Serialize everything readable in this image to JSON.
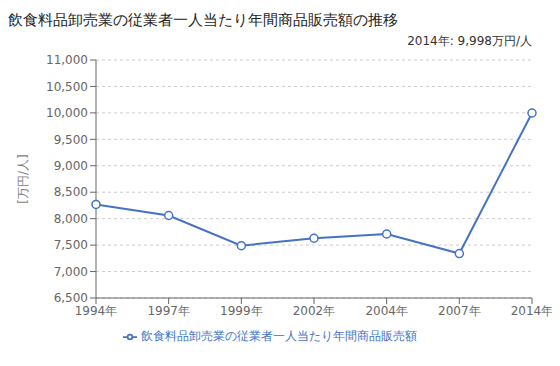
{
  "chart_data": {
    "type": "line",
    "title": "飲食料品卸売業の従業者一人当たり年間商品販売額の推移",
    "ylabel": "[万円/人]",
    "annotation": "2014年: 9,998万円/人",
    "categories": [
      "1994年",
      "1997年",
      "1999年",
      "2002年",
      "2004年",
      "2007年",
      "2014年"
    ],
    "series": [
      {
        "name": "飲食料品卸売業の従業者一人当たり年間商品販売額",
        "color": "#4472C4",
        "marker": "circle",
        "values": [
          8270,
          8060,
          7490,
          7630,
          7710,
          7340,
          9998
        ]
      }
    ],
    "ylim": [
      6500,
      11000
    ],
    "yticks": [
      {
        "value": 6500,
        "label": "6,500"
      },
      {
        "value": 7000,
        "label": "7,000"
      },
      {
        "value": 7500,
        "label": "7,500"
      },
      {
        "value": 8000,
        "label": "8,000"
      },
      {
        "value": 8500,
        "label": "8,500"
      },
      {
        "value": 9000,
        "label": "9,000"
      },
      {
        "value": 9500,
        "label": "9,500"
      },
      {
        "value": 10000,
        "label": "10,000"
      },
      {
        "value": 10500,
        "label": "10,500"
      },
      {
        "value": 11000,
        "label": "11,000"
      }
    ],
    "grid": true,
    "legend": "bottom"
  }
}
